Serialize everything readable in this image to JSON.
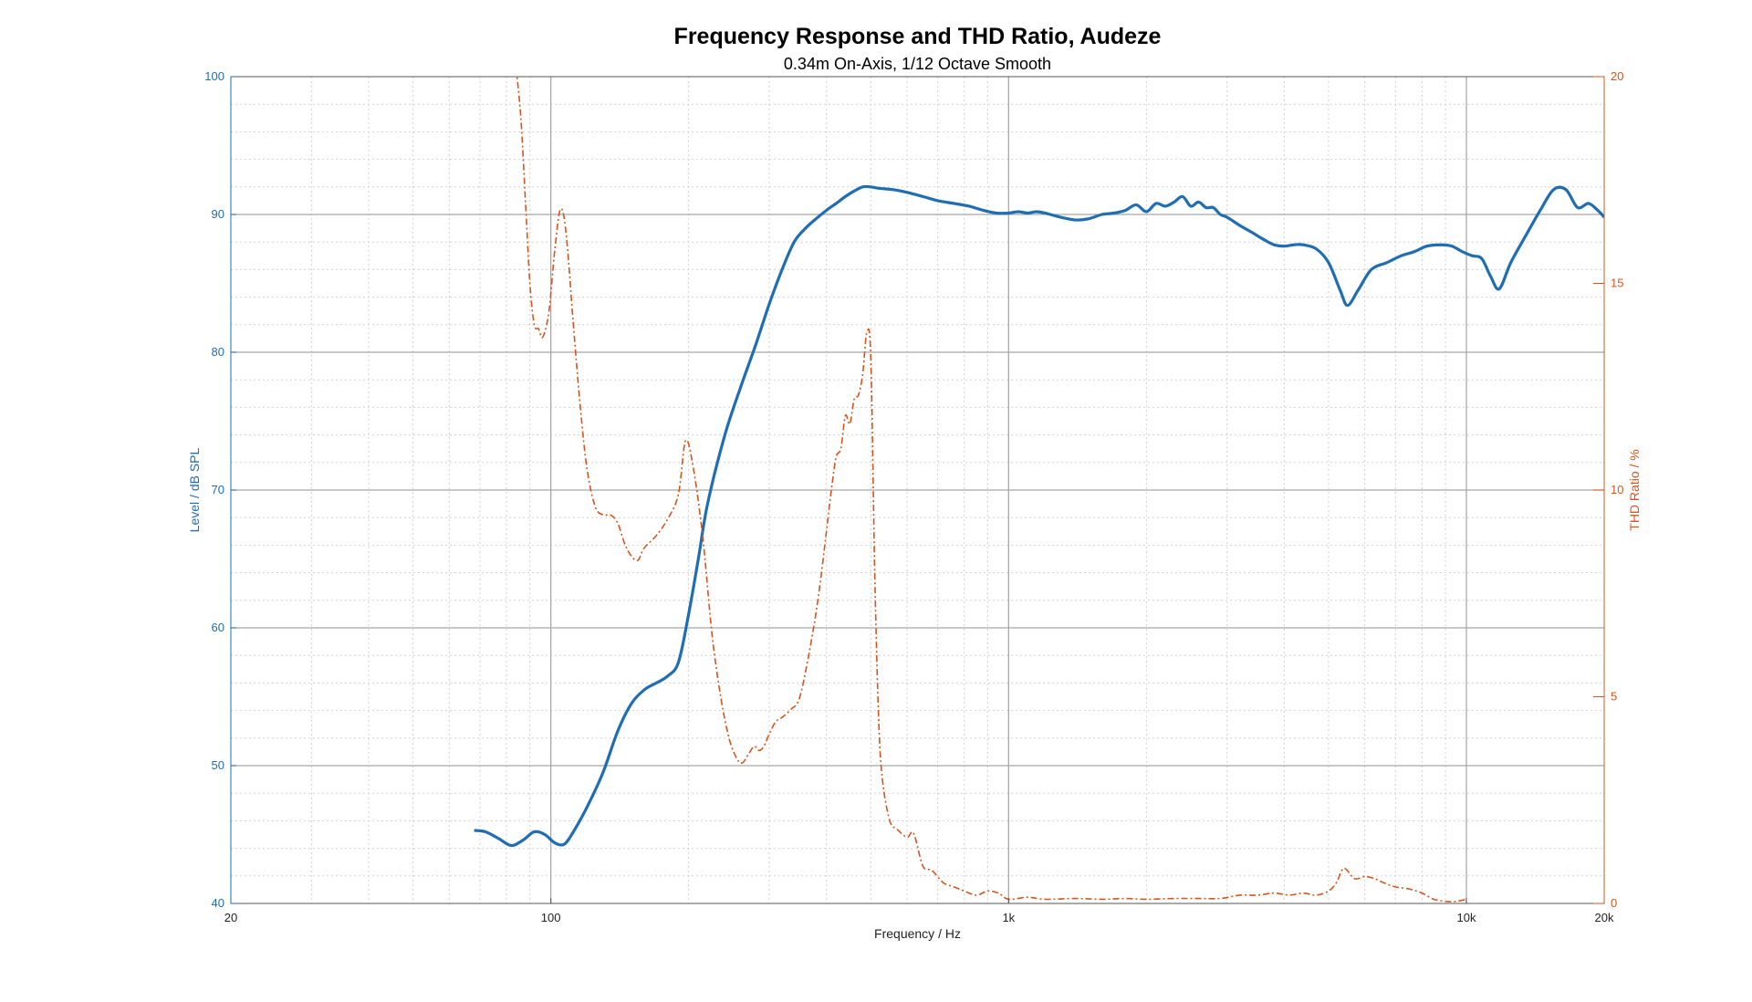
{
  "chart_data": {
    "type": "line",
    "title": "Frequency Response and THD Ratio, Audeze",
    "subtitle": "0.34m On-Axis, 1/12 Octave Smooth",
    "xlabel": "Frequency / Hz",
    "ylabel_left": "Level / dB SPL",
    "ylabel_right": "THD Ratio / %",
    "x_scale": "log",
    "xlim": [
      20,
      20000
    ],
    "ylim_left": [
      40,
      100
    ],
    "ylim_right": [
      0,
      20
    ],
    "x_ticks": [
      {
        "value": 20,
        "label": "20"
      },
      {
        "value": 100,
        "label": "100"
      },
      {
        "value": 1000,
        "label": "1k"
      },
      {
        "value": 10000,
        "label": "10k"
      },
      {
        "value": 20000,
        "label": "20k"
      }
    ],
    "y_ticks_left": [
      {
        "value": 40,
        "label": "40"
      },
      {
        "value": 50,
        "label": "50"
      },
      {
        "value": 60,
        "label": "60"
      },
      {
        "value": 70,
        "label": "70"
      },
      {
        "value": 80,
        "label": "80"
      },
      {
        "value": 90,
        "label": "90"
      },
      {
        "value": 100,
        "label": "100"
      }
    ],
    "y_ticks_right": [
      {
        "value": 0,
        "label": "0"
      },
      {
        "value": 5,
        "label": "5"
      },
      {
        "value": 10,
        "label": "10"
      },
      {
        "value": 15,
        "label": "15"
      },
      {
        "value": 20,
        "label": "20"
      }
    ],
    "grid": true,
    "colors": {
      "level": "#1f6db3",
      "thd": "#d9541c",
      "grid": "#d2d2d2",
      "grid_major": "#a8a8a8",
      "axis": "#555555"
    },
    "series": [
      {
        "axis": "left",
        "style": "solid",
        "x": [
          68,
          72,
          77,
          82,
          87,
          92,
          97,
          102,
          107,
          112,
          120,
          130,
          140,
          150,
          160,
          170,
          180,
          190,
          200,
          210,
          220,
          240,
          260,
          280,
          300,
          320,
          340,
          360,
          380,
          400,
          420,
          440,
          460,
          480,
          500,
          520,
          560,
          600,
          650,
          700,
          760,
          820,
          880,
          940,
          1000,
          1050,
          1100,
          1150,
          1200,
          1300,
          1400,
          1500,
          1600,
          1700,
          1800,
          1900,
          2000,
          2100,
          2200,
          2300,
          2400,
          2500,
          2600,
          2700,
          2800,
          2900,
          3000,
          3200,
          3400,
          3600,
          3800,
          4000,
          4200,
          4400,
          4700,
          5000,
          5300,
          5500,
          5800,
          6200,
          6700,
          7200,
          7700,
          8200,
          8800,
          9300,
          9800,
          10300,
          10800,
          11300,
          11800,
          12500,
          13500,
          14500,
          15500,
          16500,
          17500,
          18500,
          19500,
          20000
        ],
        "y": [
          45.3,
          45.2,
          44.7,
          44.2,
          44.6,
          45.2,
          45.0,
          44.4,
          44.3,
          45.2,
          47.0,
          49.5,
          52.5,
          54.5,
          55.5,
          56.0,
          56.5,
          57.5,
          61.0,
          65.0,
          69.0,
          74.0,
          77.5,
          80.5,
          83.5,
          86.0,
          88.0,
          89.0,
          89.7,
          90.3,
          90.8,
          91.3,
          91.7,
          92.0,
          92.0,
          91.9,
          91.8,
          91.6,
          91.3,
          91.0,
          90.8,
          90.6,
          90.3,
          90.1,
          90.1,
          90.2,
          90.1,
          90.2,
          90.1,
          89.8,
          89.6,
          89.7,
          90.0,
          90.1,
          90.3,
          90.7,
          90.2,
          90.8,
          90.6,
          90.9,
          91.3,
          90.6,
          90.9,
          90.5,
          90.5,
          90.0,
          89.8,
          89.2,
          88.7,
          88.2,
          87.8,
          87.7,
          87.8,
          87.8,
          87.5,
          86.5,
          84.5,
          83.4,
          84.5,
          86.0,
          86.5,
          87.0,
          87.3,
          87.7,
          87.8,
          87.7,
          87.3,
          87.0,
          86.8,
          85.5,
          84.6,
          86.5,
          88.5,
          90.3,
          91.8,
          91.8,
          90.5,
          90.8,
          90.2,
          89.8
        ]
      },
      {
        "axis": "right",
        "style": "dashdot",
        "x": [
          84,
          86,
          88,
          90,
          92,
          94,
          96,
          99,
          102,
          105,
          108,
          112,
          116,
          120,
          125,
          130,
          135,
          140,
          145,
          150,
          155,
          160,
          170,
          180,
          190,
          197,
          205,
          215,
          225,
          235,
          245,
          255,
          262,
          270,
          278,
          285,
          292,
          300,
          310,
          320,
          335,
          350,
          370,
          385,
          400,
          410,
          420,
          430,
          440,
          450,
          460,
          470,
          480,
          490,
          500,
          510,
          520,
          530,
          550,
          570,
          600,
          620,
          650,
          680,
          720,
          760,
          800,
          850,
          900,
          950,
          1000,
          1100,
          1200,
          1400,
          1600,
          1800,
          2000,
          2300,
          2600,
          2900,
          3200,
          3500,
          3800,
          4100,
          4400,
          4700,
          5000,
          5200,
          5400,
          5700,
          6000,
          6300,
          6600,
          7000,
          7500,
          8000,
          8500,
          9000,
          9500,
          10000
        ],
        "y": [
          20.2,
          19.0,
          17.0,
          15.0,
          14.0,
          13.9,
          13.7,
          14.3,
          15.8,
          16.8,
          16.2,
          14.0,
          12.0,
          10.5,
          9.6,
          9.4,
          9.4,
          9.2,
          8.7,
          8.4,
          8.3,
          8.6,
          8.9,
          9.3,
          9.9,
          11.2,
          10.5,
          8.8,
          6.5,
          5.0,
          4.0,
          3.5,
          3.4,
          3.6,
          3.8,
          3.7,
          3.8,
          4.1,
          4.4,
          4.5,
          4.7,
          5.0,
          6.3,
          7.5,
          9.0,
          10.0,
          10.8,
          11.0,
          11.8,
          11.6,
          12.2,
          12.3,
          12.8,
          13.8,
          13.2,
          8.0,
          4.5,
          3.0,
          2.0,
          1.8,
          1.6,
          1.7,
          0.9,
          0.8,
          0.5,
          0.4,
          0.3,
          0.2,
          0.3,
          0.25,
          0.1,
          0.15,
          0.1,
          0.12,
          0.1,
          0.12,
          0.1,
          0.12,
          0.12,
          0.12,
          0.2,
          0.2,
          0.25,
          0.2,
          0.25,
          0.2,
          0.3,
          0.5,
          0.85,
          0.6,
          0.65,
          0.6,
          0.5,
          0.4,
          0.35,
          0.25,
          0.1,
          0.05,
          0.05,
          0.1
        ]
      }
    ]
  }
}
